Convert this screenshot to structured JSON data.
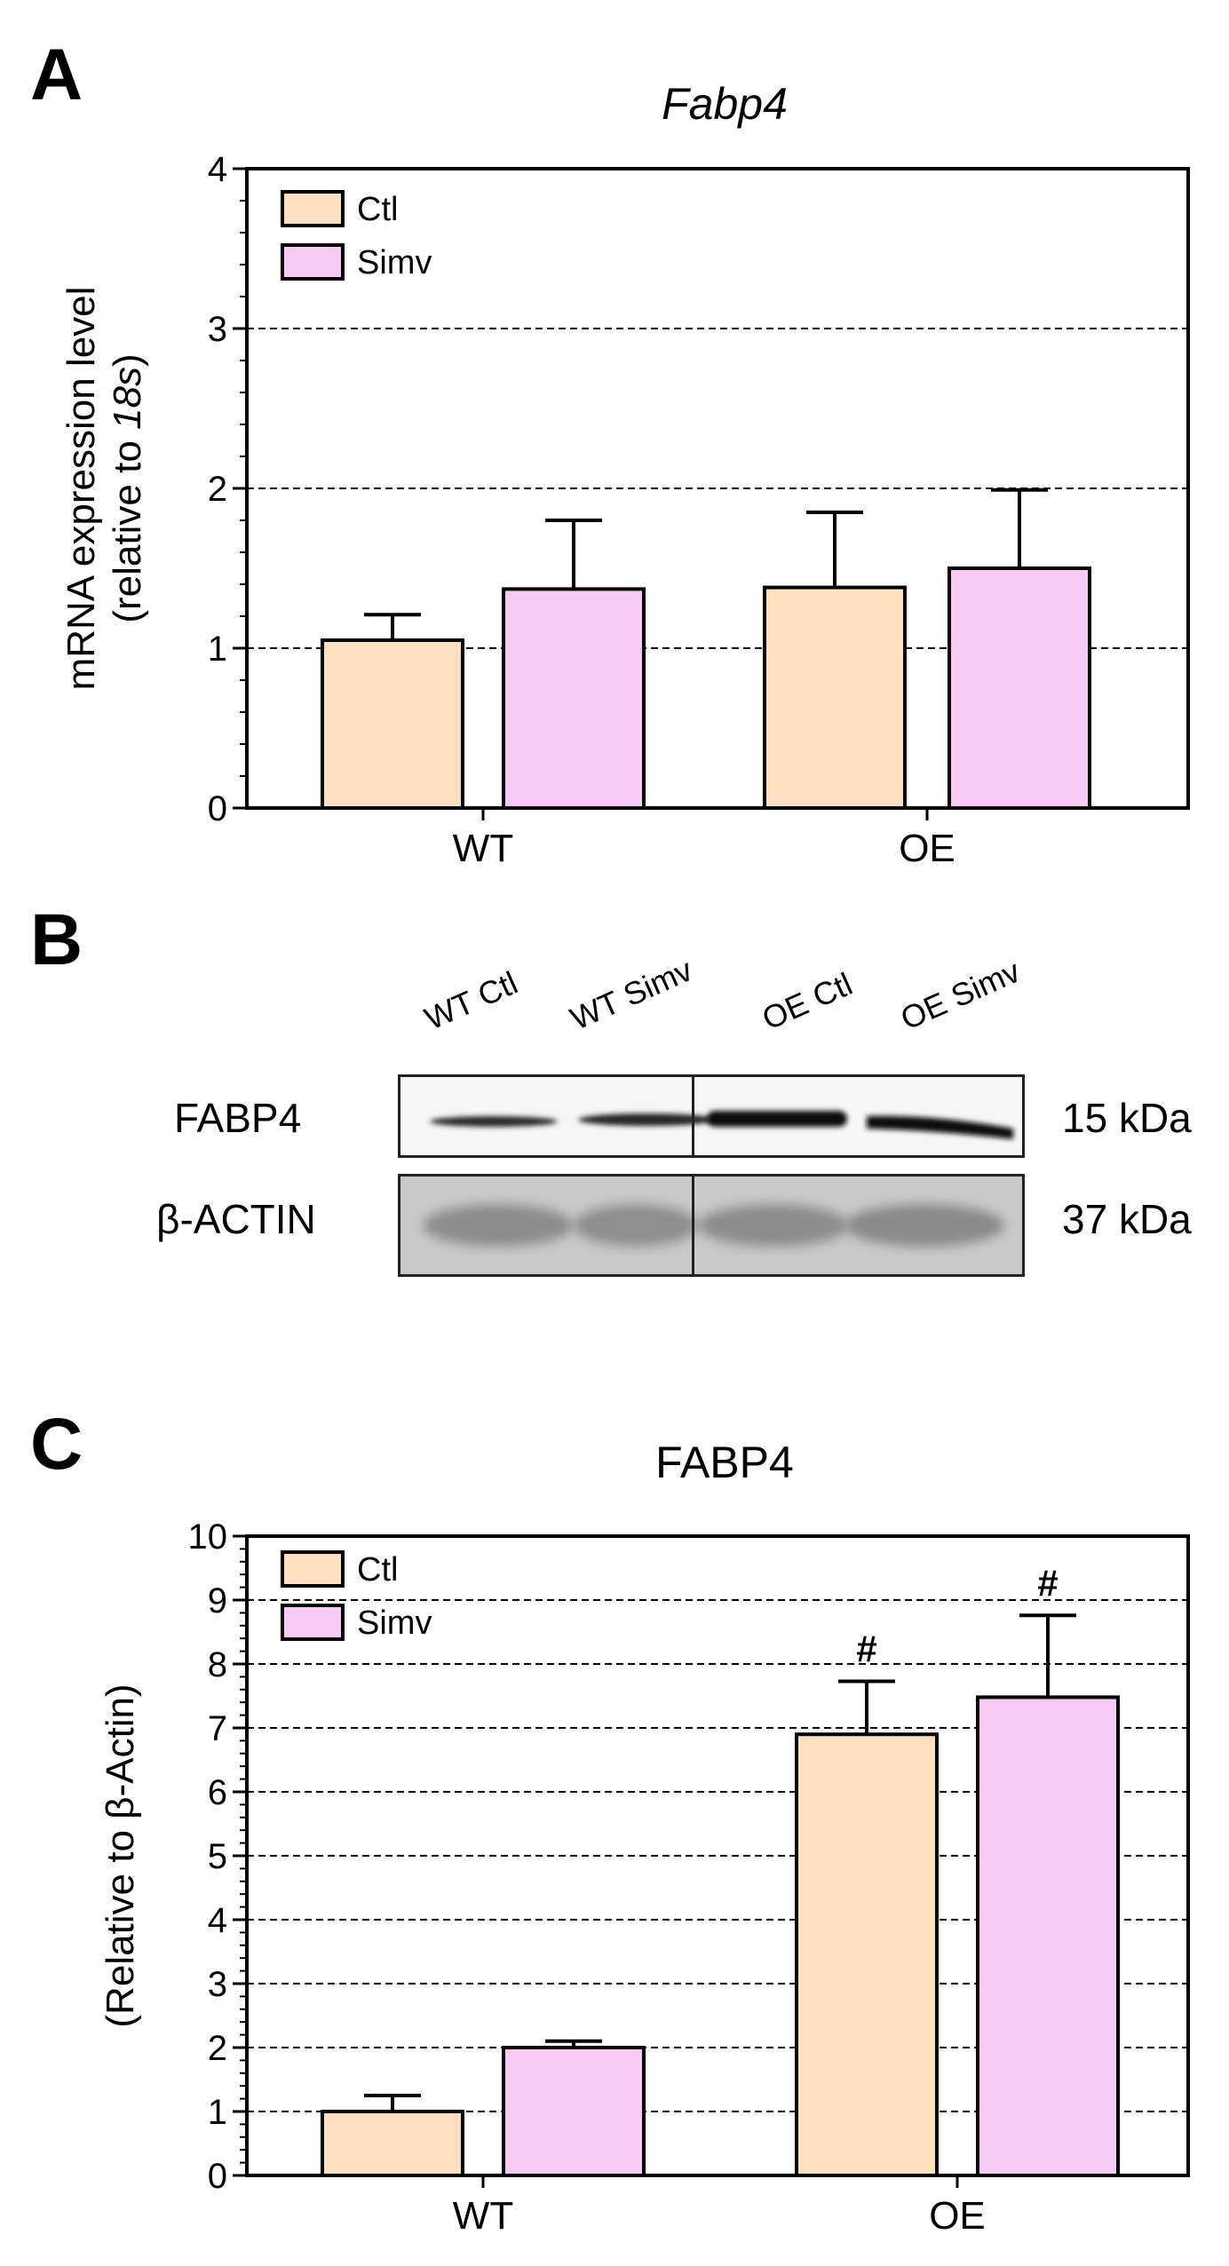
{
  "panels": {
    "a": {
      "letter": "A"
    },
    "b": {
      "letter": "B"
    },
    "c": {
      "letter": "C"
    }
  },
  "colors": {
    "ctl": "#FDDFBF",
    "simv": "#F9C9F6",
    "stroke": "#000000"
  },
  "chart_data": [
    {
      "type": "bar",
      "title": "Fabp4",
      "title_style": "italic",
      "ylabel_line1": "mRNA expression level",
      "ylabel_line2_prefix": "(relative to ",
      "ylabel_line2_italic": "18s",
      "ylabel_line2_suffix": ")",
      "categories": [
        "WT",
        "OE"
      ],
      "series": [
        {
          "name": "Ctl",
          "values": [
            1.05,
            1.38
          ],
          "errors": [
            0.16,
            0.47
          ]
        },
        {
          "name": "Simv",
          "values": [
            1.37,
            1.5
          ],
          "errors": [
            0.43,
            0.49
          ]
        }
      ],
      "ylim": [
        0,
        4
      ],
      "yticks": [
        "0",
        "1",
        "2",
        "3",
        "4"
      ],
      "grid": "dashed horizontal",
      "legend_position": "top-left",
      "annotations": []
    },
    {
      "type": "bar",
      "title": "FABP4",
      "title_style": "normal",
      "ylabel_line1": "(Relative to β-Actin)",
      "categories": [
        "WT",
        "OE"
      ],
      "series": [
        {
          "name": "Ctl",
          "values": [
            1.0,
            6.9
          ],
          "errors": [
            0.25,
            0.83
          ]
        },
        {
          "name": "Simv",
          "values": [
            2.0,
            7.48
          ],
          "errors": [
            0.1,
            1.28
          ]
        }
      ],
      "ylim": [
        0,
        10
      ],
      "yticks": [
        "0",
        "1",
        "2",
        "3",
        "4",
        "5",
        "6",
        "7",
        "8",
        "9",
        "10"
      ],
      "grid": "dashed horizontal",
      "legend_position": "top-left",
      "annotations": [
        {
          "text": "#",
          "category": "OE",
          "series": "Ctl"
        },
        {
          "text": "#",
          "category": "OE",
          "series": "Simv"
        }
      ]
    }
  ],
  "western_blot": {
    "lanes": [
      "WT Ctl",
      "WT Simv",
      "OE Ctl",
      "OE Simv"
    ],
    "rows": [
      {
        "label": "FABP4",
        "size": "15 kDa"
      },
      {
        "label": "β-ACTIN",
        "size": "37 kDa"
      }
    ]
  }
}
